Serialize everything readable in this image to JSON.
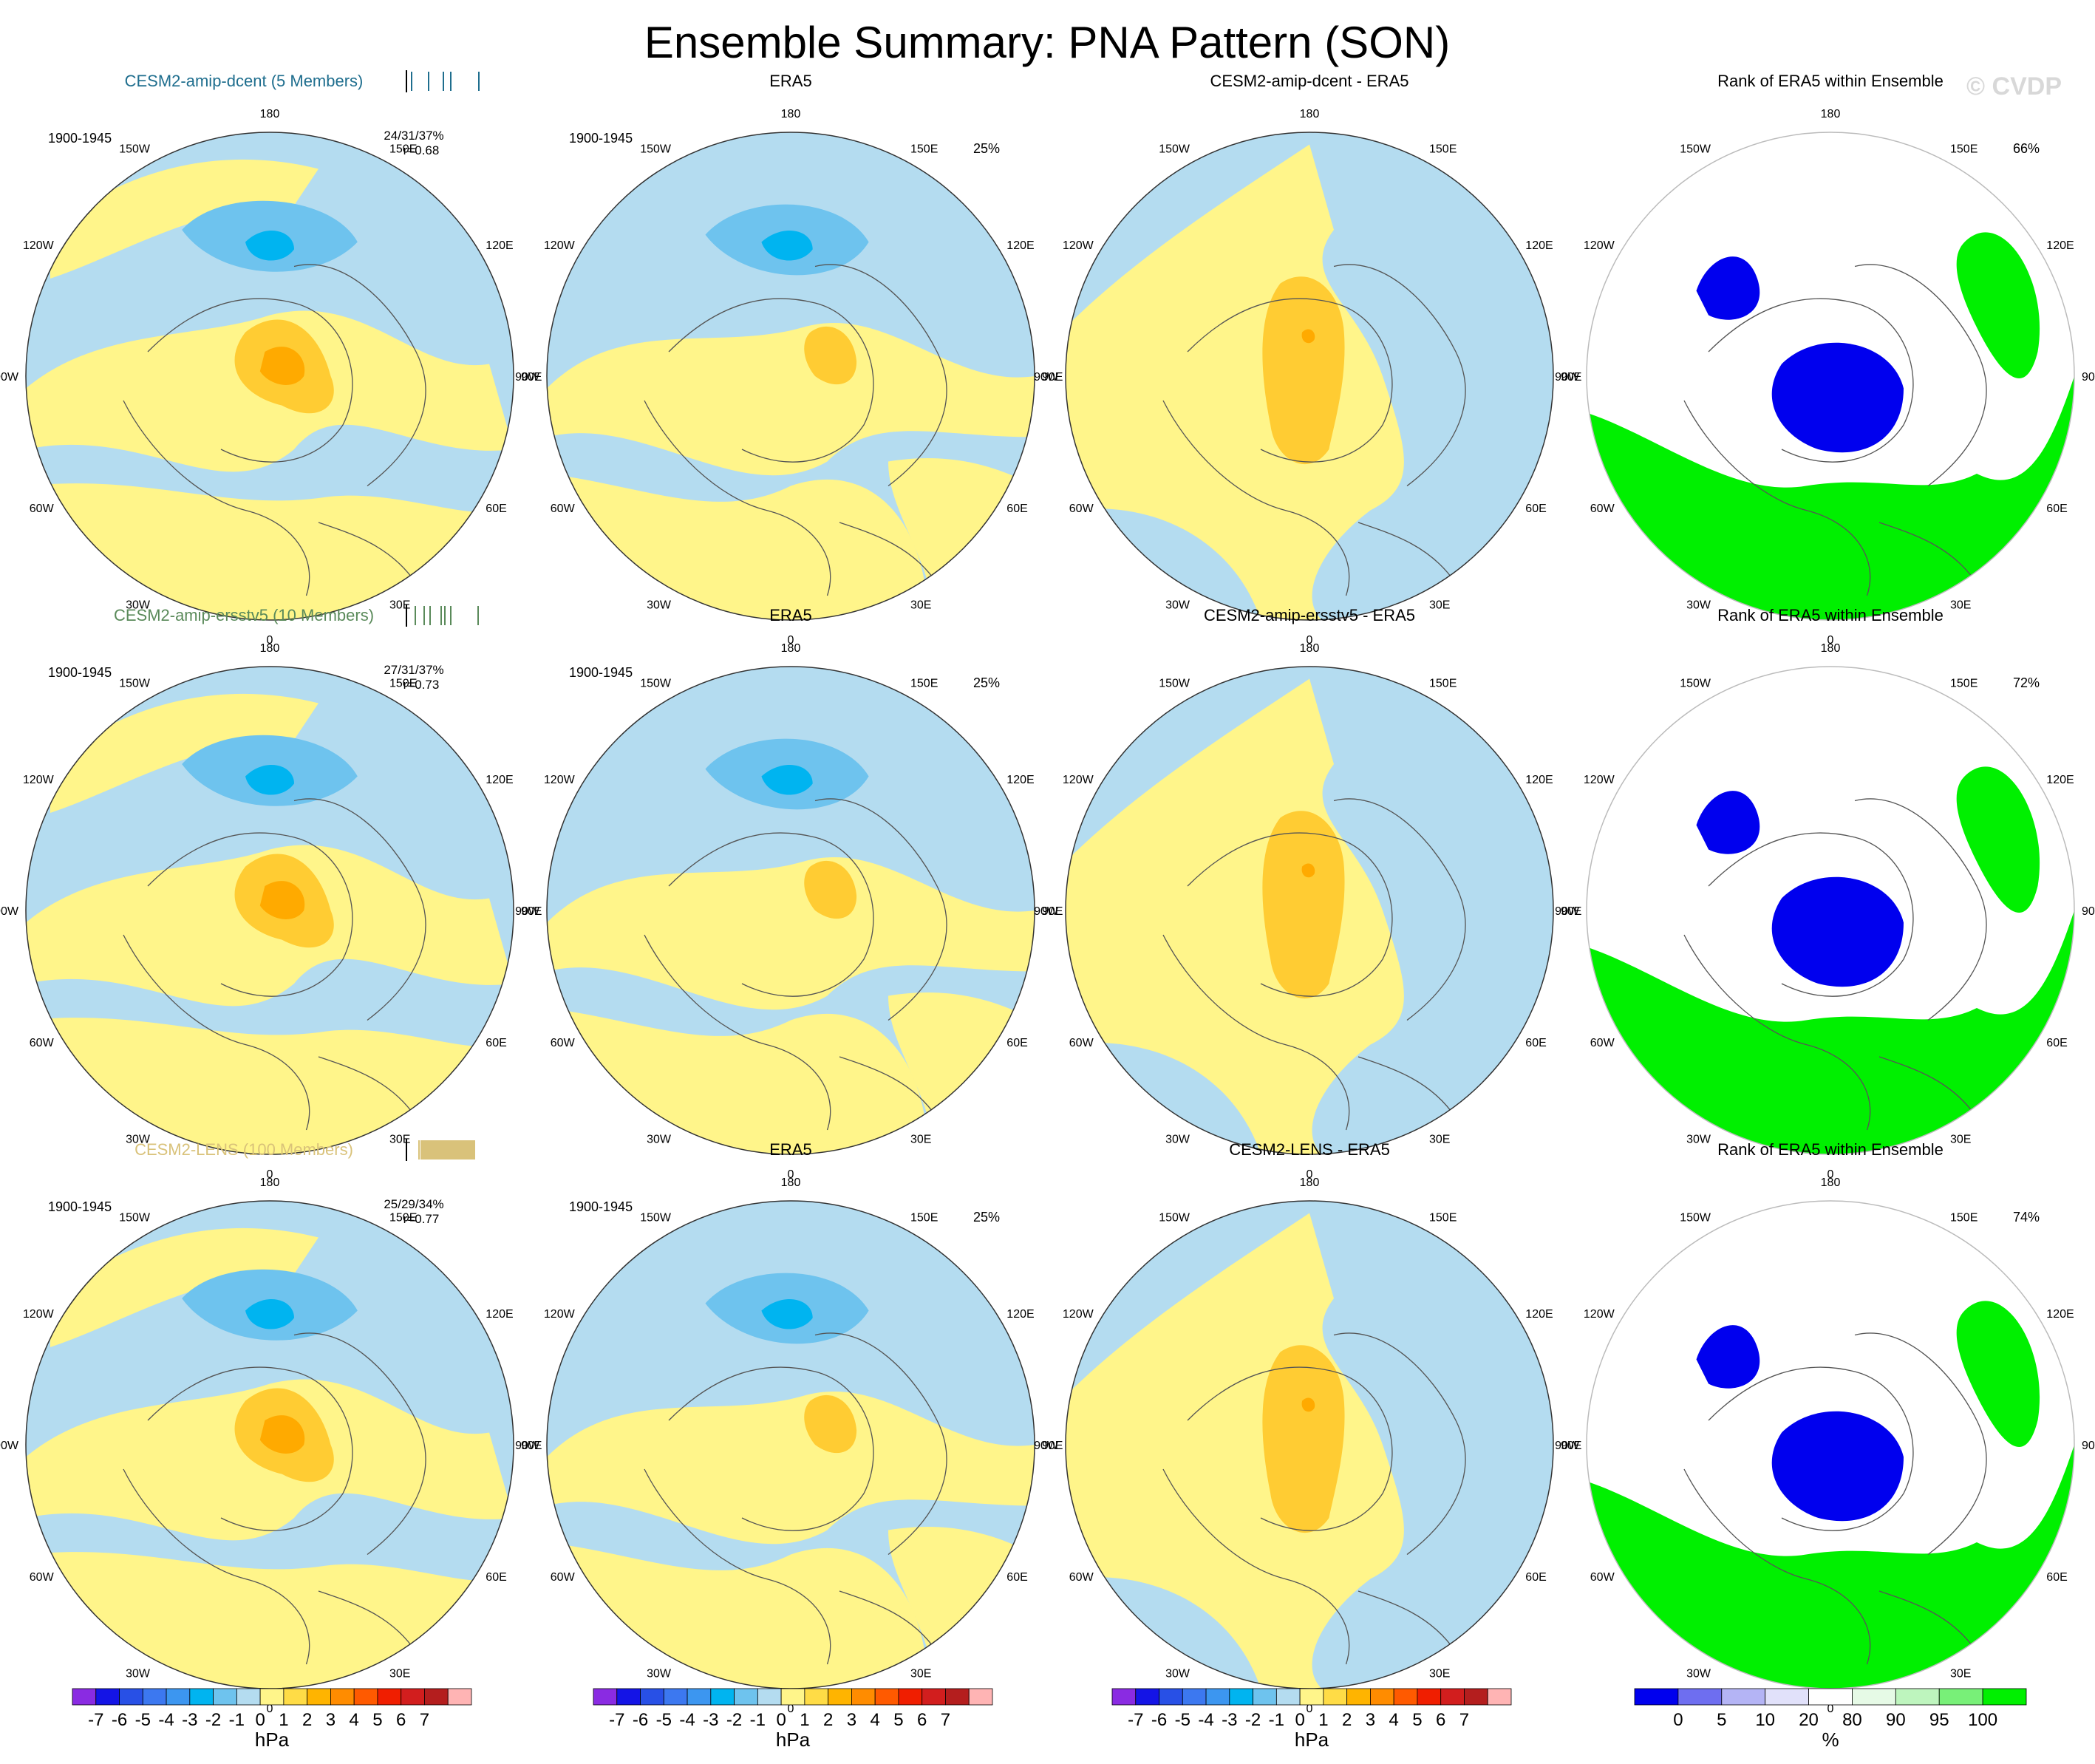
{
  "title": "Ensemble Summary: PNA Pattern (SON)",
  "watermark": "© CVDP",
  "meridian_labels": [
    "180",
    "150E",
    "120E",
    "90E",
    "60E",
    "30E",
    "0",
    "30W",
    "60W",
    "90W",
    "120W",
    "150W"
  ],
  "colors": {
    "ocean": "#b4dcf0",
    "yellow": "#fff58a",
    "light_blue": "#6ec3ee",
    "cyan": "#00b4f0",
    "orange1": "#ffcc33",
    "orange2": "#ffaa00",
    "rank_blue": "#0000ee",
    "rank_green": "#00f000"
  },
  "chart_data": {
    "type": "map",
    "projection": "north polar stereographic",
    "variable": "PNA pattern sea level pressure regression (SON)",
    "rows": [
      {
        "model": {
          "title": "CESM2-amip-dcent (5 Members)",
          "title_color": "#1f6e8e",
          "period": "1900-1945",
          "stats": "24/31/37%",
          "corr": "r=0.68",
          "ticks": [
            0.05,
            0.28,
            0.48,
            0.58,
            0.96
          ]
        },
        "obs": {
          "title": "ERA5",
          "period": "1900-1945",
          "pct": "25%"
        },
        "diff": {
          "title": "CESM2-amip-dcent - ERA5"
        },
        "rank": {
          "title": "Rank of ERA5 within Ensemble",
          "pct": "66%"
        }
      },
      {
        "model": {
          "title": "CESM2-amip-ersstv5 (10 Members)",
          "title_color": "#5a8a5a",
          "period": "1900-1945",
          "stats": "27/31/37%",
          "corr": "r=0.73",
          "ticks": [
            0.1,
            0.22,
            0.3,
            0.45,
            0.5,
            0.58,
            0.95
          ]
        },
        "obs": {
          "title": "ERA5",
          "period": "1900-1945",
          "pct": "25%"
        },
        "diff": {
          "title": "CESM2-amip-ersstv5 - ERA5"
        },
        "rank": {
          "title": "Rank of ERA5 within Ensemble",
          "pct": "72%"
        }
      },
      {
        "model": {
          "title": "CESM2-LENS (100 Members)",
          "title_color": "#d9c27a",
          "period": "1900-1945",
          "stats": "25/29/34%",
          "corr": "r=0.77",
          "ticks": [
            0.15,
            0.18,
            0.2,
            0.22,
            0.24,
            0.26,
            0.28,
            0.3,
            0.32,
            0.34,
            0.36,
            0.38,
            0.4,
            0.42,
            0.44,
            0.46,
            0.48,
            0.5,
            0.52,
            0.54,
            0.56,
            0.58,
            0.6,
            0.62,
            0.64,
            0.66,
            0.68,
            0.7,
            0.72,
            0.74,
            0.76,
            0.78,
            0.8,
            0.82,
            0.84,
            0.86,
            0.88,
            0.9
          ]
        },
        "obs": {
          "title": "ERA5",
          "period": "1900-1945",
          "pct": "25%"
        },
        "diff": {
          "title": "CESM2-LENS - ERA5"
        },
        "rank": {
          "title": "Rank of ERA5 within Ensemble",
          "pct": "74%"
        }
      }
    ],
    "slp_colorbar": {
      "unit": "hPa",
      "labels": [
        "-7",
        "-6",
        "-5",
        "-4",
        "-3",
        "-2",
        "-1",
        "0",
        "1",
        "2",
        "3",
        "4",
        "5",
        "6",
        "7"
      ],
      "colors": [
        "#8a2be2",
        "#1414e6",
        "#2850e6",
        "#3c78f0",
        "#3c96f0",
        "#00b4f0",
        "#6ec3ee",
        "#b4dcf0",
        "#fff58a",
        "#ffdc46",
        "#ffb400",
        "#ff8c00",
        "#ff5a00",
        "#f01e00",
        "#d21e1e",
        "#b41e1e",
        "#ffb4b4"
      ]
    },
    "rank_colorbar": {
      "unit": "%",
      "labels": [
        "0",
        "5",
        "10",
        "20",
        "80",
        "90",
        "95",
        "100"
      ],
      "colors": [
        "#0000ee",
        "#6e6ef0",
        "#b4b4f5",
        "#e1e1fa",
        "#ffffff",
        "#e6fae6",
        "#bef5be",
        "#78f078",
        "#00f000"
      ]
    }
  }
}
